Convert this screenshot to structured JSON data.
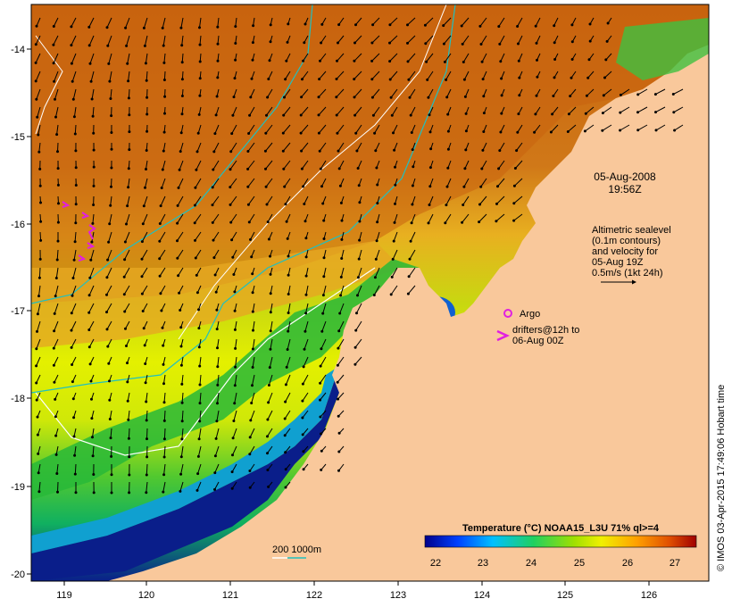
{
  "map": {
    "longitude_ticks": [
      "119",
      "120",
      "121",
      "122",
      "123",
      "124",
      "125",
      "126"
    ],
    "latitude_ticks": [
      "-14",
      "-15",
      "-16",
      "-17",
      "-18",
      "-19",
      "-20"
    ]
  },
  "timestamp": {
    "date": "05-Aug-2008",
    "time": "19:56Z"
  },
  "altimetry_note": {
    "lines": [
      "Altimetric sealevel",
      "(0.1m contours)",
      "and velocity for",
      "05-Aug 19Z",
      "0.5m/s (1kt 24h)"
    ]
  },
  "legend": {
    "argo_label": "Argo",
    "drifters_lines": [
      "drifters@12h to",
      "06-Aug 00Z"
    ],
    "depth_label": "200  1000m",
    "argo_color": "#e020e0",
    "drifter_color": "#e020e0",
    "contour_200_color": "#ffffff",
    "contour_1000_color": "#20c0c0"
  },
  "colorbar": {
    "title": "Temperature (°C) NOAA15_L3U 71% ql>=4",
    "tick_labels": [
      "22",
      "23",
      "24",
      "25",
      "26",
      "27"
    ],
    "colors": [
      "#00008b",
      "#0040ff",
      "#00c0ff",
      "#20d060",
      "#a0e000",
      "#f0f000",
      "#ffa000",
      "#e05000",
      "#a00000"
    ]
  },
  "credit": "© IMOS 03-Apr-2015 17:49:06 Hobart time",
  "land_color": "#f9c89b",
  "sea_colors": {
    "warm": "#c86410",
    "mid": "#e0a020",
    "yellow": "#e8f000",
    "green": "#30c030",
    "cool": "#10a0d0",
    "cold": "#0a1e8a"
  }
}
